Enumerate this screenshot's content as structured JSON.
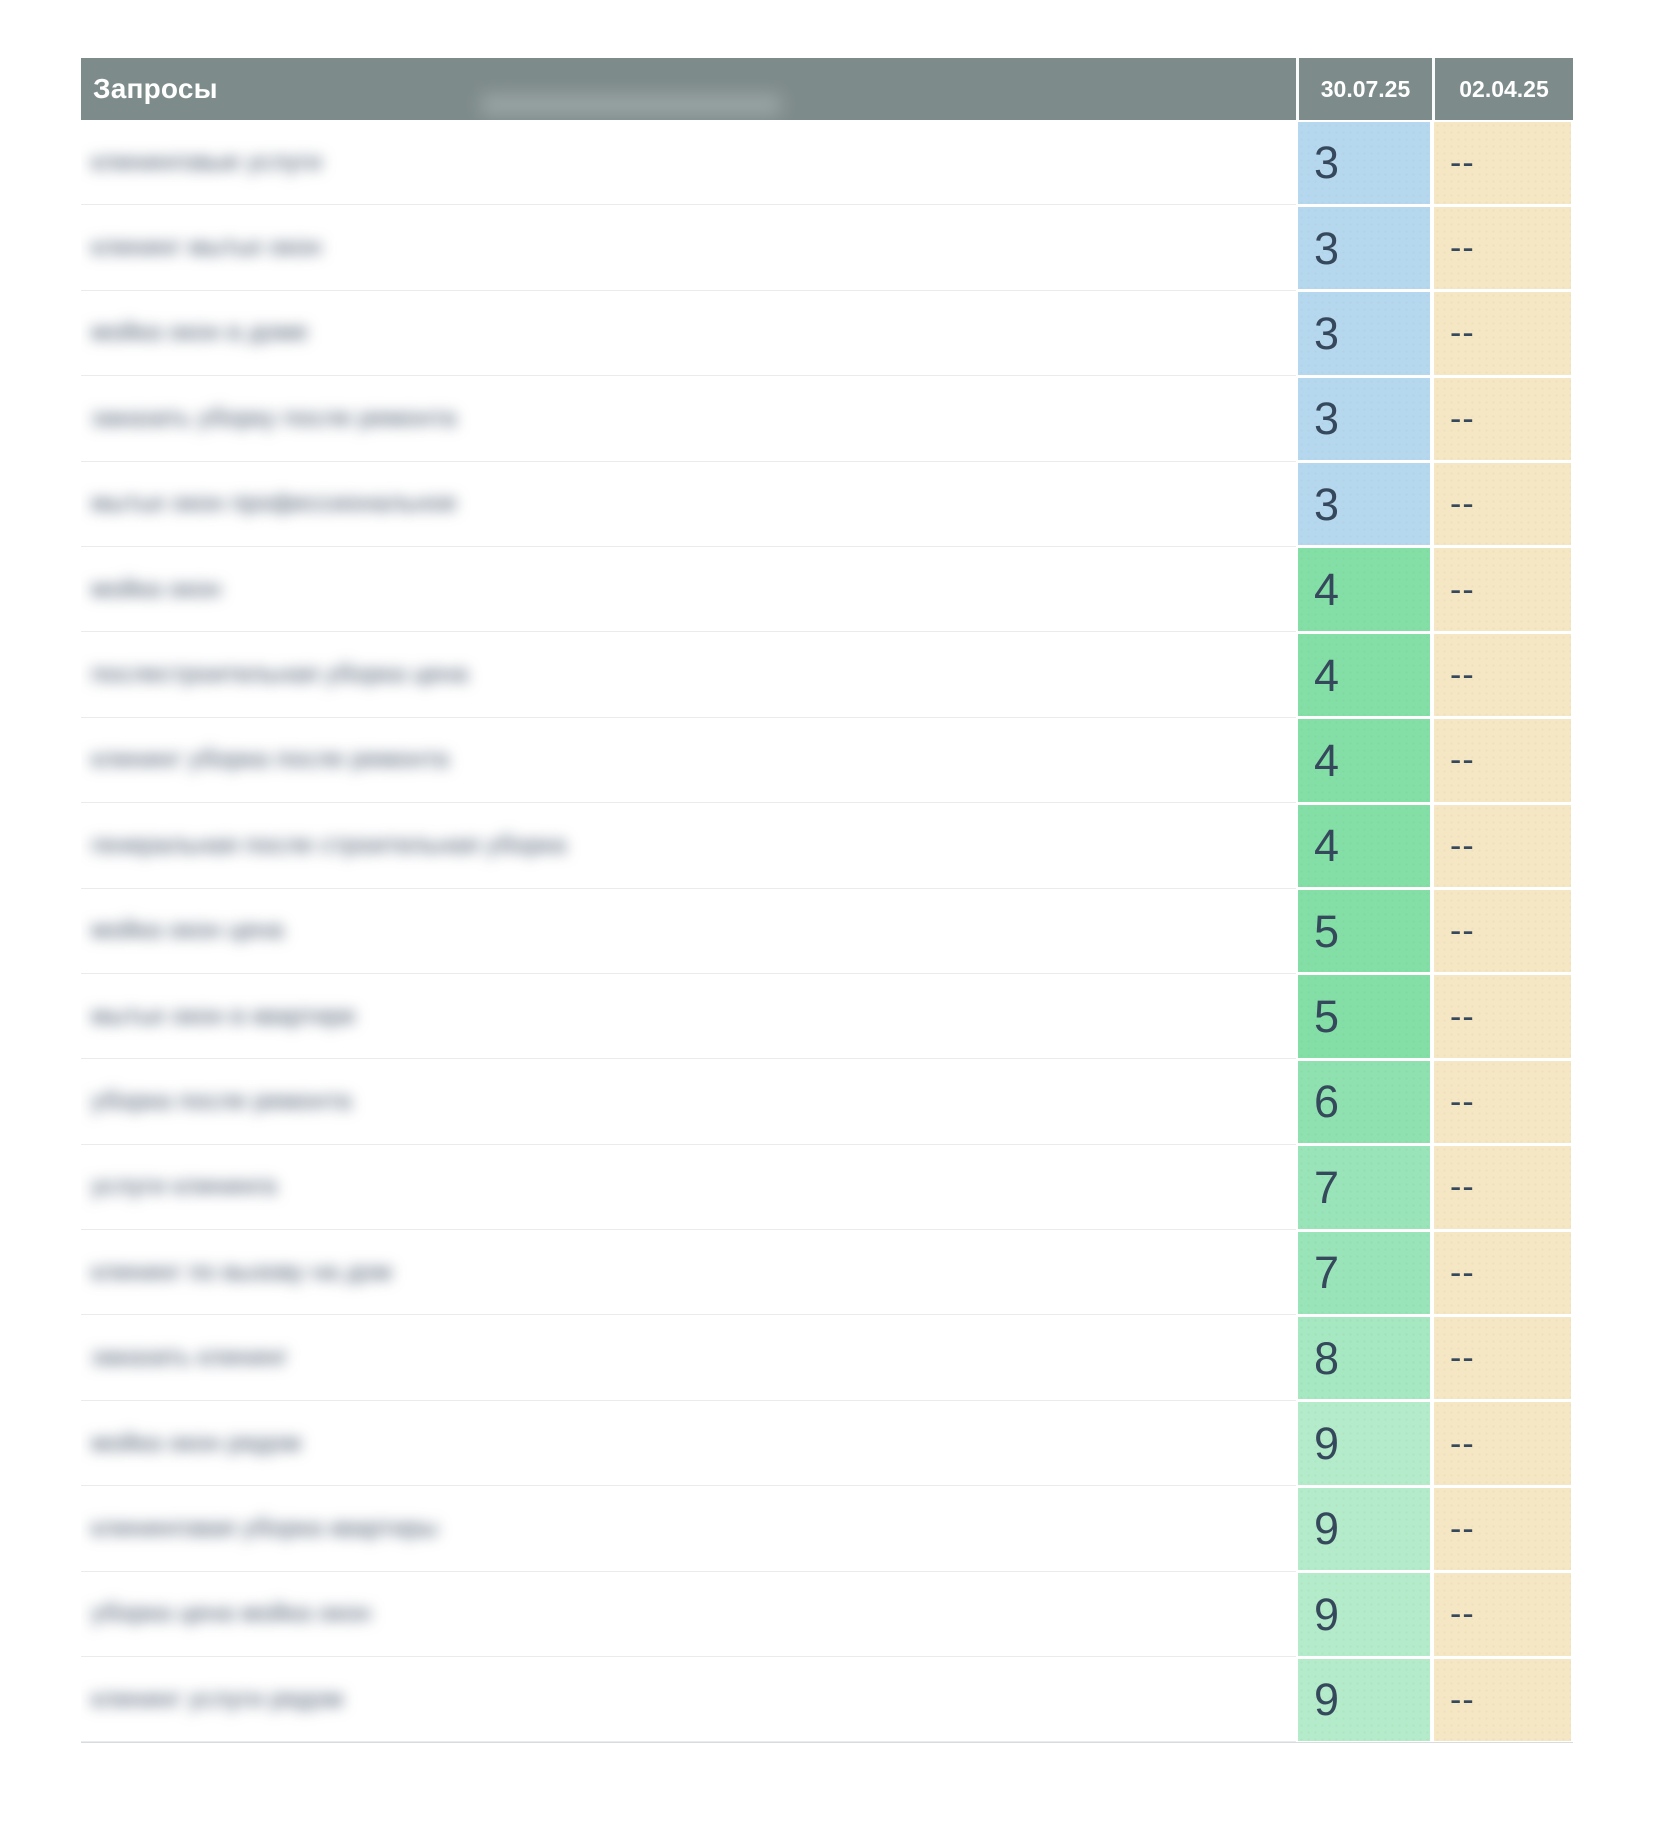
{
  "header": {
    "queries_label": "Запросы",
    "date_columns": [
      "30.07.25",
      "02.04.25"
    ]
  },
  "rows": [
    {
      "query": "клининговые услуги",
      "current": "3",
      "previous": "--"
    },
    {
      "query": "клининг мытье окон",
      "current": "3",
      "previous": "--"
    },
    {
      "query": "мойка окон в доме",
      "current": "3",
      "previous": "--"
    },
    {
      "query": "заказать уборку после ремонта",
      "current": "3",
      "previous": "--"
    },
    {
      "query": "мытье окон профессиональное",
      "current": "3",
      "previous": "--"
    },
    {
      "query": "мойка окон",
      "current": "4",
      "previous": "--"
    },
    {
      "query": "послестроительная уборка цена",
      "current": "4",
      "previous": "--"
    },
    {
      "query": "клининг уборка после ремонта",
      "current": "4",
      "previous": "--"
    },
    {
      "query": "генеральная после строительная уборка",
      "current": "4",
      "previous": "--"
    },
    {
      "query": "мойка окон цена",
      "current": "5",
      "previous": "--"
    },
    {
      "query": "мытье окон в квартире",
      "current": "5",
      "previous": "--"
    },
    {
      "query": "уборка после ремонта",
      "current": "6",
      "previous": "--"
    },
    {
      "query": "услуги клининга",
      "current": "7",
      "previous": "--"
    },
    {
      "query": "клининг по вызову на дом",
      "current": "7",
      "previous": "--"
    },
    {
      "query": "заказать клининг",
      "current": "8",
      "previous": "--"
    },
    {
      "query": "мойка окон рядом",
      "current": "9",
      "previous": "--"
    },
    {
      "query": "клининговая уборка квартиры",
      "current": "9",
      "previous": "--"
    },
    {
      "query": "уборка цена мойка окон",
      "current": "9",
      "previous": "--"
    },
    {
      "query": "клининг услуги рядом",
      "current": "9",
      "previous": "--"
    }
  ],
  "colors": {
    "header_bg": "#7e8b8b",
    "header_text": "#ffffff",
    "value_text": "#36485c",
    "previous_bg": "#f5e7c3",
    "rank_3": "#b6d8ef",
    "rank_4": "#83dfa6",
    "rank_5": "#83dfa6",
    "rank_6": "#8fe2b0",
    "rank_7": "#9ae4b9",
    "rank_8": "#a5e8c1",
    "rank_9": "#b4ebca"
  }
}
